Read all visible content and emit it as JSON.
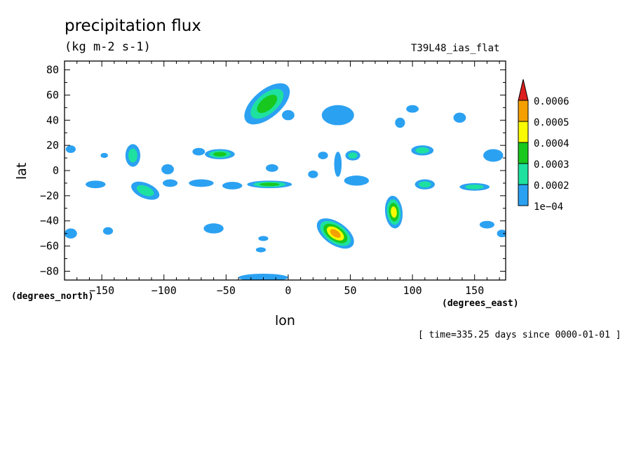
{
  "chart_data": {
    "type": "heatmap",
    "title": "precipitation flux",
    "units": "(kg m-2 s-1)",
    "run_label": "T39L48_ias_flat",
    "xlabel": "lon",
    "ylabel": "lat",
    "x_unit": "(degrees_east)",
    "y_unit": "(degrees_north)",
    "xlim": [
      -180,
      175
    ],
    "ylim": [
      -87,
      87
    ],
    "x_ticks": [
      -150,
      -100,
      -50,
      0,
      50,
      100,
      150
    ],
    "y_ticks": [
      80,
      60,
      40,
      20,
      0,
      -20,
      -40,
      -60,
      -80
    ],
    "timestamp": "[ time=335.25 days since 0000-01-01 ]",
    "colorbar": {
      "levels": [
        "1e-04",
        "0.0002",
        "0.0003",
        "0.0004",
        "0.0005",
        "0.0006"
      ],
      "colors": [
        "#2ba1f2",
        "#1ee1a0",
        "#19c81e",
        "#fafa00",
        "#f5a000",
        "#dc1e1e"
      ]
    },
    "features": [
      {
        "lon": -17,
        "lat": 53,
        "rx": 22,
        "ry": 11,
        "rot": 0.7,
        "level": 3
      },
      {
        "lon": 0,
        "lat": 44,
        "rx": 5,
        "ry": 4,
        "rot": 0,
        "level": 1
      },
      {
        "lon": 40,
        "lat": 44,
        "rx": 13,
        "ry": 8,
        "rot": 0,
        "level": 1
      },
      {
        "lon": 90,
        "lat": 38,
        "rx": 4,
        "ry": 4,
        "rot": 0,
        "level": 1
      },
      {
        "lon": 100,
        "lat": 49,
        "rx": 5,
        "ry": 3,
        "rot": 0,
        "level": 1
      },
      {
        "lon": 138,
        "lat": 42,
        "rx": 5,
        "ry": 4,
        "rot": 0,
        "level": 1
      },
      {
        "lon": -125,
        "lat": 12,
        "rx": 6,
        "ry": 9,
        "rot": 0,
        "level": 2
      },
      {
        "lon": -97,
        "lat": 1,
        "rx": 5,
        "ry": 4,
        "rot": 0,
        "level": 1
      },
      {
        "lon": -55,
        "lat": 13,
        "rx": 12,
        "ry": 4,
        "rot": 0,
        "level": 3
      },
      {
        "lon": -72,
        "lat": 15,
        "rx": 5,
        "ry": 3,
        "rot": 0,
        "level": 1
      },
      {
        "lon": -175,
        "lat": 17,
        "rx": 4,
        "ry": 3,
        "rot": 0,
        "level": 1
      },
      {
        "lon": -148,
        "lat": 12,
        "rx": 3,
        "ry": 2,
        "rot": 0,
        "level": 1
      },
      {
        "lon": 28,
        "lat": 12,
        "rx": 4,
        "ry": 3,
        "rot": 0,
        "level": 1
      },
      {
        "lon": 52,
        "lat": 12,
        "rx": 6,
        "ry": 4,
        "rot": 0,
        "level": 2
      },
      {
        "lon": 108,
        "lat": 16,
        "rx": 9,
        "ry": 4,
        "rot": 0,
        "level": 2
      },
      {
        "lon": 165,
        "lat": 12,
        "rx": 8,
        "ry": 5,
        "rot": 0,
        "level": 1
      },
      {
        "lon": 40,
        "lat": 5,
        "rx": 3,
        "ry": 10,
        "rot": 0,
        "level": 1
      },
      {
        "lon": -13,
        "lat": 2,
        "rx": 5,
        "ry": 3,
        "rot": 0,
        "level": 1
      },
      {
        "lon": -115,
        "lat": -16,
        "rx": 12,
        "ry": 6,
        "rot": -0.4,
        "level": 2
      },
      {
        "lon": -155,
        "lat": -11,
        "rx": 8,
        "ry": 3,
        "rot": 0,
        "level": 1
      },
      {
        "lon": -95,
        "lat": -10,
        "rx": 6,
        "ry": 3,
        "rot": 0,
        "level": 1
      },
      {
        "lon": -70,
        "lat": -10,
        "rx": 10,
        "ry": 3,
        "rot": 0,
        "level": 1
      },
      {
        "lon": -45,
        "lat": -12,
        "rx": 8,
        "ry": 3,
        "rot": 0,
        "level": 1
      },
      {
        "lon": -15,
        "lat": -11,
        "rx": 18,
        "ry": 3,
        "rot": 0,
        "level": 3
      },
      {
        "lon": 55,
        "lat": -8,
        "rx": 10,
        "ry": 4,
        "rot": 0,
        "level": 1
      },
      {
        "lon": 110,
        "lat": -11,
        "rx": 8,
        "ry": 4,
        "rot": 0,
        "level": 2
      },
      {
        "lon": 150,
        "lat": -13,
        "rx": 12,
        "ry": 3,
        "rot": 0,
        "level": 2
      },
      {
        "lon": 20,
        "lat": -3,
        "rx": 4,
        "ry": 3,
        "rot": 0,
        "level": 1
      },
      {
        "lon": 85,
        "lat": -33,
        "rx": 7,
        "ry": 13,
        "rot": 0.1,
        "level": 4
      },
      {
        "lon": 38,
        "lat": -50,
        "rx": 17,
        "ry": 9,
        "rot": -0.6,
        "level": 5
      },
      {
        "lon": -60,
        "lat": -46,
        "rx": 8,
        "ry": 4,
        "rot": 0,
        "level": 1
      },
      {
        "lon": -145,
        "lat": -48,
        "rx": 4,
        "ry": 3,
        "rot": 0,
        "level": 1
      },
      {
        "lon": -175,
        "lat": -50,
        "rx": 5,
        "ry": 4,
        "rot": 0,
        "level": 1
      },
      {
        "lon": -20,
        "lat": -54,
        "rx": 4,
        "ry": 2,
        "rot": 0,
        "level": 1
      },
      {
        "lon": -22,
        "lat": -63,
        "rx": 4,
        "ry": 2,
        "rot": 0,
        "level": 1
      },
      {
        "lon": 160,
        "lat": -43,
        "rx": 6,
        "ry": 3,
        "rot": 0,
        "level": 1
      },
      {
        "lon": 172,
        "lat": -50,
        "rx": 4,
        "ry": 3,
        "rot": 0,
        "level": 1
      },
      {
        "lon": -20,
        "lat": -85,
        "rx": 20,
        "ry": 3,
        "rot": 0,
        "level": 1
      }
    ]
  }
}
